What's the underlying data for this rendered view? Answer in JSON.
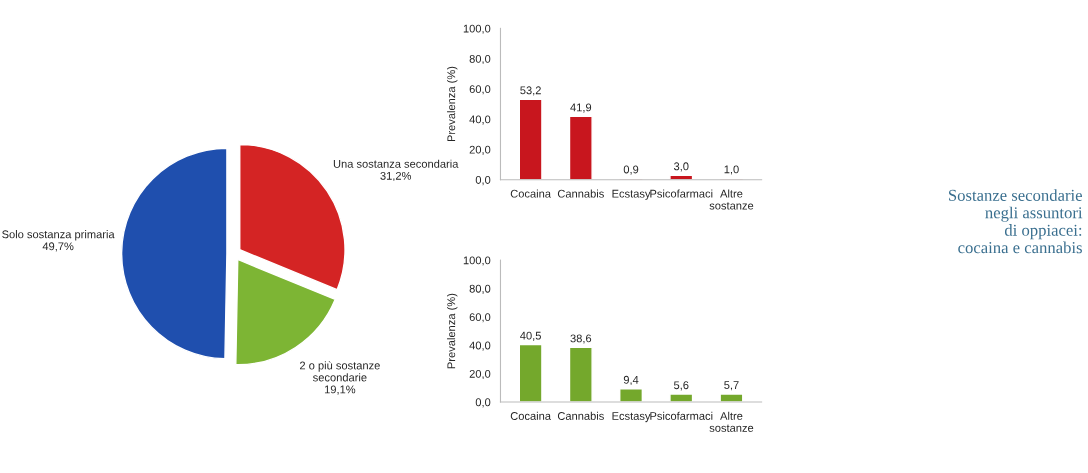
{
  "chart_data": [
    {
      "type": "pie",
      "categories": [
        "Una sostanza secondaria",
        "2 o più sostanze\nsecondarie",
        "Solo sostanza primaria"
      ],
      "values": [
        31.2,
        19.1,
        49.7
      ],
      "colors": [
        "#d42424",
        "#7db534",
        "#1f4fae"
      ],
      "value_labels": [
        "31,2%",
        "19,1%",
        "49,7%"
      ]
    },
    {
      "type": "bar",
      "ylabel": "Prevalenza (%)",
      "categories": [
        "Cocaina",
        "Cannabis",
        "Ecstasy",
        "Psicofarmaci",
        "Altre\nsostanze"
      ],
      "values": [
        53.2,
        41.9,
        0.9,
        3.0,
        1.0
      ],
      "color": "#c8161e",
      "value_labels": [
        "53,2",
        "41,9",
        "0,9",
        "3,0",
        "1,0"
      ],
      "ylim": [
        0,
        100
      ],
      "yticks": [
        {
          "value": 0,
          "label": "0,0"
        },
        {
          "value": 20,
          "label": "20,0"
        },
        {
          "value": 40,
          "label": "40,0"
        },
        {
          "value": 60,
          "label": "60,0"
        },
        {
          "value": 80,
          "label": "80,0"
        },
        {
          "value": 100,
          "label": "100,0"
        }
      ]
    },
    {
      "type": "bar",
      "ylabel": "Prevalenza (%)",
      "categories": [
        "Cocaina",
        "Cannabis",
        "Ecstasy",
        "Psicofarmaci",
        "Altre\nsostanze"
      ],
      "values": [
        40.5,
        38.6,
        9.4,
        5.6,
        5.7
      ],
      "color": "#74a82c",
      "value_labels": [
        "40,5",
        "38,6",
        "9,4",
        "5,6",
        "5,7"
      ],
      "ylim": [
        0,
        100
      ],
      "yticks": [
        {
          "value": 0,
          "label": "0,0"
        },
        {
          "value": 20,
          "label": "20,0"
        },
        {
          "value": 40,
          "label": "40,0"
        },
        {
          "value": 60,
          "label": "60,0"
        },
        {
          "value": 80,
          "label": "80,0"
        },
        {
          "value": 100,
          "label": "100,0"
        }
      ]
    },
    {
      "type": "other",
      "annotations": [
        "Sostanze secondarie\nnegli assuntori\ndi oppiacei:\ncocaina e cannabis"
      ]
    }
  ]
}
